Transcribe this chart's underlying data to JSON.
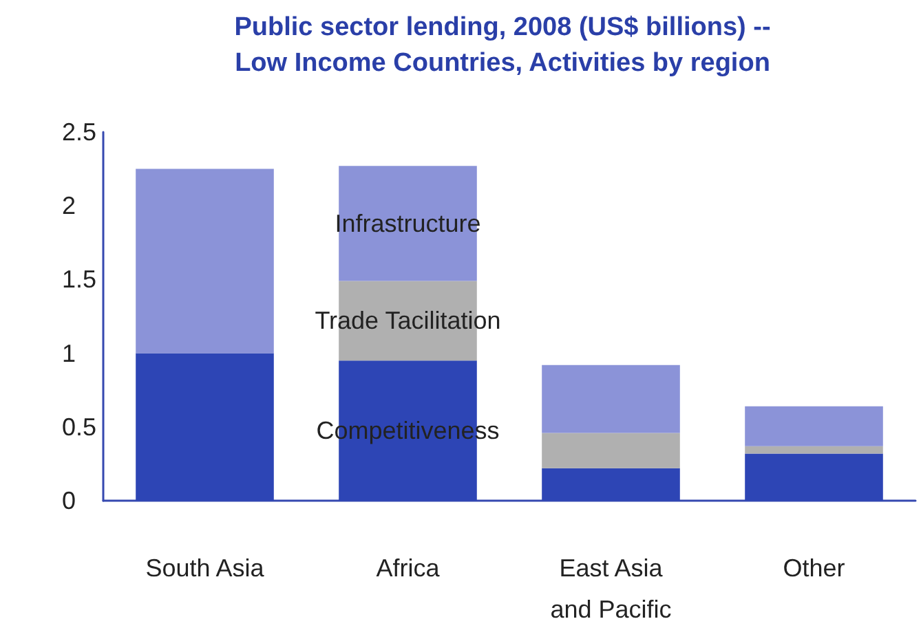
{
  "chart_data": {
    "type": "bar",
    "title": "Public sector lending, 2008 (US$ billions) --\nLow Income Countries, Activities by region",
    "categories": [
      "South Asia",
      "Africa",
      "East Asia\nand Pacific",
      "Other"
    ],
    "stacked": true,
    "series": [
      {
        "name": "Competitiveness",
        "color": "#2d45b5",
        "values": [
          1.0,
          0.95,
          0.22,
          0.32
        ]
      },
      {
        "name": "Trade Tacilitation",
        "color": "#b0b0b0",
        "values": [
          0,
          0.54,
          0.24,
          0.05
        ]
      },
      {
        "name": "Infrastructure",
        "color": "#8b93d8",
        "values": [
          1.25,
          0.78,
          0.46,
          0.27
        ]
      }
    ],
    "ylim": [
      0,
      2.5
    ],
    "yticks": [
      0,
      0.5,
      1,
      1.5,
      2,
      2.5
    ],
    "grid": false,
    "legend": false
  }
}
